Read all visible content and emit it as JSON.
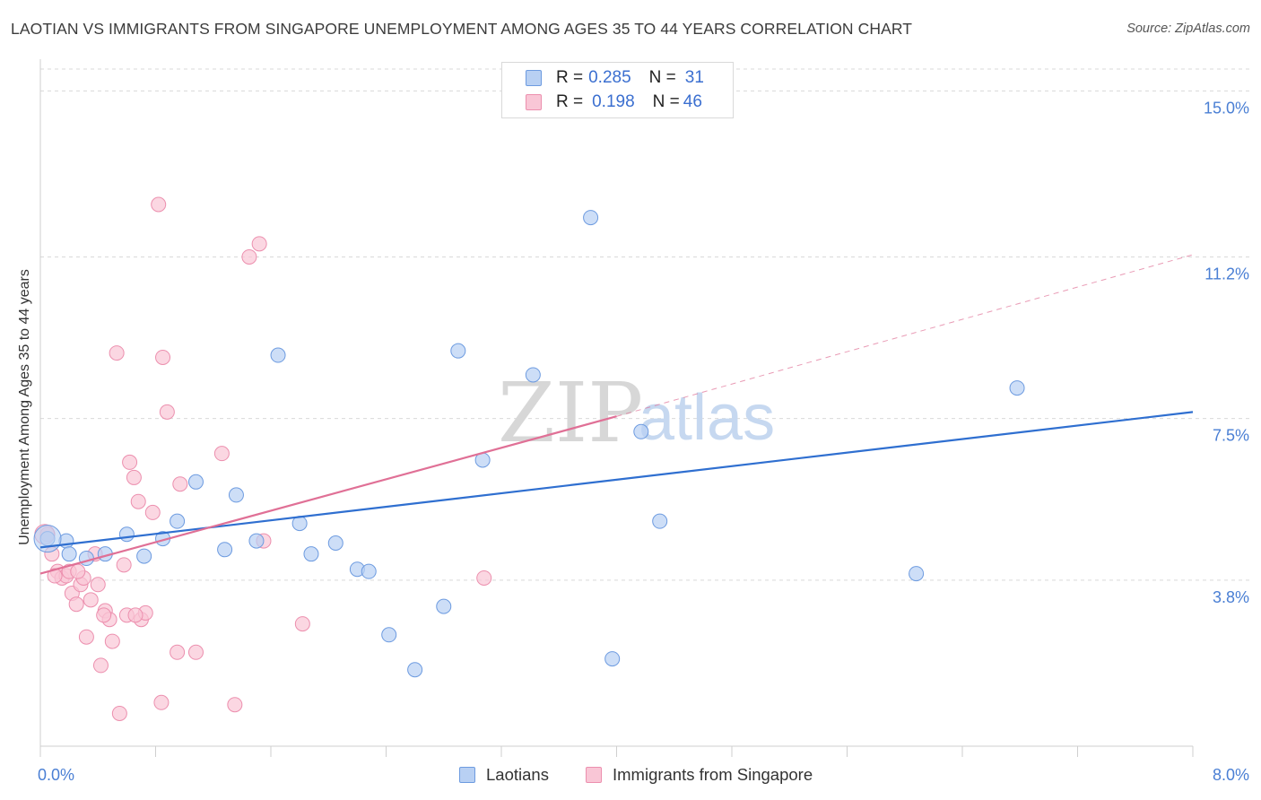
{
  "header": {
    "title": "LAOTIAN VS IMMIGRANTS FROM SINGAPORE UNEMPLOYMENT AMONG AGES 35 TO 44 YEARS CORRELATION CHART",
    "source": "Source: ZipAtlas.com"
  },
  "watermark": {
    "zip": "ZIP",
    "atlas": "atlas"
  },
  "legend_top": {
    "rows": [
      {
        "r_label": "R = ",
        "r_value": "0.285",
        "n_label": "N = ",
        "n_value": "31"
      },
      {
        "r_label": "R = ",
        "r_value": "0.198",
        "n_label": "N = ",
        "n_value": "46"
      }
    ]
  },
  "colors": {
    "blue_fill": "#b8d0f3",
    "blue_stroke": "#6d9be0",
    "blue_line": "#2f6fd0",
    "pink_fill": "#f9c6d6",
    "pink_stroke": "#ec8fae",
    "pink_line": "#e07096",
    "grid": "#d9d9d9",
    "tick_label": "#4a7fd4"
  },
  "chart_data": {
    "type": "scatter",
    "title": "LAOTIAN VS IMMIGRANTS FROM SINGAPORE UNEMPLOYMENT AMONG AGES 35 TO 44 YEARS CORRELATION CHART",
    "xlabel": "",
    "ylabel": "Unemployment Among Ages 35 to 44 years",
    "xlim": [
      0,
      8
    ],
    "ylim": [
      0,
      15.5
    ],
    "x_tick_labels": [
      "0.0%",
      "8.0%"
    ],
    "y_ticks": [
      3.8,
      7.5,
      11.2,
      15.0
    ],
    "y_tick_labels": [
      "3.8%",
      "7.5%",
      "11.2%",
      "15.0%"
    ],
    "legend_position": "top-center",
    "series": [
      {
        "name": "Laotians",
        "r": 0.285,
        "n": 31,
        "trend": {
          "x0": 0.0,
          "y0": 4.55,
          "x1": 8.0,
          "y1": 7.65,
          "dashed_to": null
        },
        "points": [
          [
            0.05,
            4.75
          ],
          [
            0.18,
            4.7
          ],
          [
            0.32,
            4.3
          ],
          [
            0.45,
            4.4
          ],
          [
            0.6,
            4.85
          ],
          [
            0.72,
            4.35
          ],
          [
            0.85,
            4.75
          ],
          [
            0.95,
            5.15
          ],
          [
            1.08,
            6.05
          ],
          [
            1.28,
            4.5
          ],
          [
            1.36,
            5.75
          ],
          [
            1.65,
            8.95
          ],
          [
            1.8,
            5.1
          ],
          [
            1.88,
            4.4
          ],
          [
            2.05,
            4.65
          ],
          [
            2.2,
            4.05
          ],
          [
            2.28,
            4.0
          ],
          [
            2.42,
            2.55
          ],
          [
            2.6,
            1.75
          ],
          [
            2.8,
            3.2
          ],
          [
            2.9,
            9.05
          ],
          [
            3.07,
            6.55
          ],
          [
            3.42,
            8.5
          ],
          [
            3.82,
            12.1
          ],
          [
            3.97,
            2.0
          ],
          [
            4.17,
            7.2
          ],
          [
            4.3,
            5.15
          ],
          [
            6.08,
            3.95
          ],
          [
            6.78,
            8.2
          ],
          [
            1.5,
            4.7
          ],
          [
            0.2,
            4.4
          ]
        ]
      },
      {
        "name": "Immigrants from Singapore",
        "r": 0.198,
        "n": 46,
        "trend": {
          "x0": 0.0,
          "y0": 3.95,
          "x1": 4.0,
          "y1": 7.55,
          "dashed_to": [
            8.0,
            11.25
          ]
        },
        "points": [
          [
            0.05,
            4.85
          ],
          [
            0.08,
            4.4
          ],
          [
            0.12,
            4.0
          ],
          [
            0.15,
            3.85
          ],
          [
            0.18,
            3.9
          ],
          [
            0.2,
            4.0
          ],
          [
            0.22,
            3.5
          ],
          [
            0.25,
            3.25
          ],
          [
            0.28,
            3.7
          ],
          [
            0.3,
            3.85
          ],
          [
            0.32,
            2.5
          ],
          [
            0.35,
            3.35
          ],
          [
            0.38,
            4.4
          ],
          [
            0.4,
            3.7
          ],
          [
            0.42,
            1.85
          ],
          [
            0.45,
            3.1
          ],
          [
            0.48,
            2.9
          ],
          [
            0.5,
            2.4
          ],
          [
            0.53,
            9.0
          ],
          [
            0.55,
            0.75
          ],
          [
            0.58,
            4.15
          ],
          [
            0.6,
            3.0
          ],
          [
            0.62,
            6.5
          ],
          [
            0.65,
            6.15
          ],
          [
            0.68,
            5.6
          ],
          [
            0.7,
            2.9
          ],
          [
            0.73,
            3.05
          ],
          [
            0.78,
            5.35
          ],
          [
            0.82,
            12.4
          ],
          [
            0.84,
            1.0
          ],
          [
            0.85,
            8.9
          ],
          [
            0.88,
            7.65
          ],
          [
            0.95,
            2.15
          ],
          [
            0.97,
            6.0
          ],
          [
            1.08,
            2.15
          ],
          [
            1.26,
            6.7
          ],
          [
            1.35,
            0.95
          ],
          [
            1.45,
            11.2
          ],
          [
            1.52,
            11.5
          ],
          [
            1.55,
            4.7
          ],
          [
            1.82,
            2.8
          ],
          [
            3.08,
            3.85
          ],
          [
            0.1,
            3.9
          ],
          [
            0.26,
            4.0
          ],
          [
            0.44,
            3.0
          ],
          [
            0.66,
            3.0
          ]
        ]
      }
    ]
  },
  "legend_bottom": {
    "items": [
      "Laotians",
      "Immigrants from Singapore"
    ]
  }
}
